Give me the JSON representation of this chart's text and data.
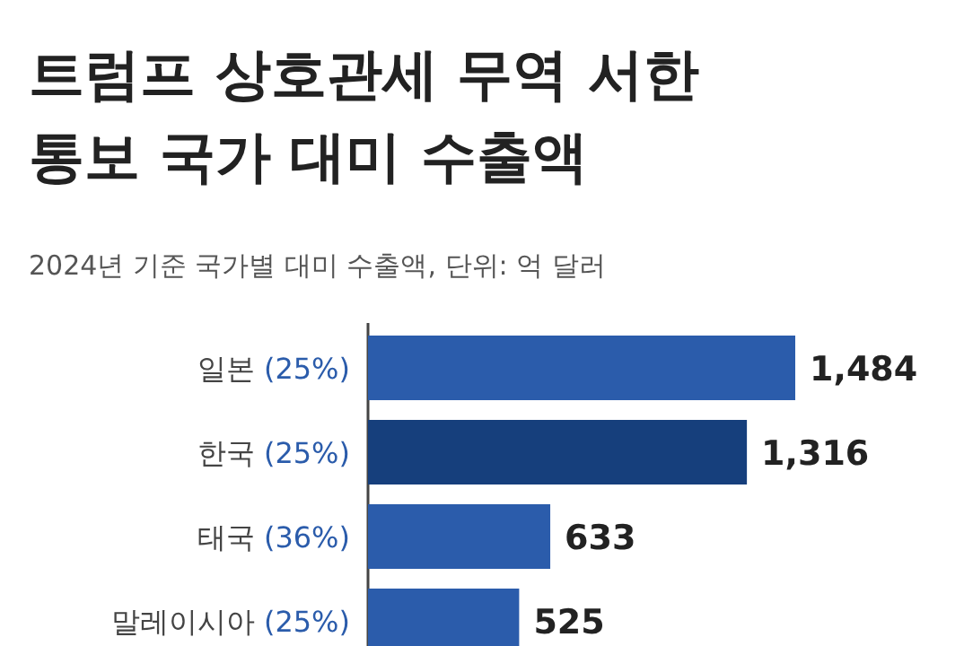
{
  "chart_data": {
    "type": "bar",
    "orientation": "horizontal",
    "title": "트럼프 상호관세 무역 서한\n통보 국가 대미 수출액",
    "subtitle": "2024년 기준 국가별 대미 수출액, 단위: 억 달러",
    "categories": [
      "일본 (25%)",
      "한국 (25%)",
      "태국 (36%)",
      "말레이시아 (25%)"
    ],
    "values": [
      1484,
      1316,
      633,
      525
    ],
    "colors": [
      "#2b5cab",
      "#163f7c",
      "#2b5cab",
      "#2b5cab"
    ],
    "value_labels": [
      "1,484",
      "1,316",
      "633",
      "525"
    ]
  }
}
